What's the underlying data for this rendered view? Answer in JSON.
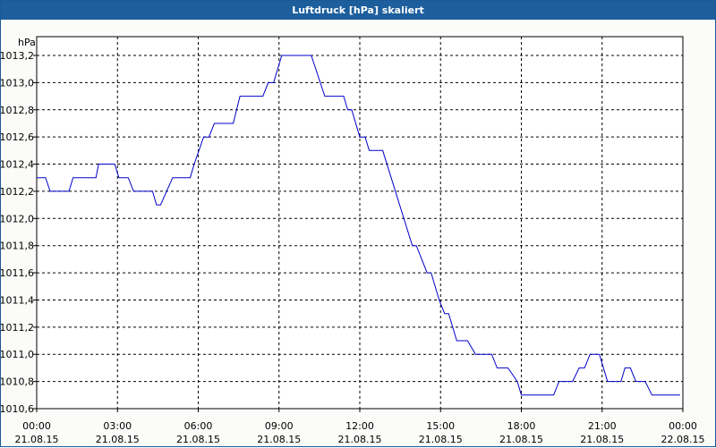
{
  "window": {
    "title": "Luftdruck [hPa] skaliert"
  },
  "chart_data": {
    "type": "line",
    "title": "Luftdruck [hPa] skaliert",
    "ylabel": "hPa",
    "xlabel": "",
    "ylim": [
      1010.6,
      1013.2
    ],
    "xlim": [
      "21.08.15 00:00",
      "22.08.15 00:00"
    ],
    "grid": true,
    "yticks": [
      1010.6,
      1010.8,
      1011.0,
      1011.2,
      1011.4,
      1011.6,
      1011.8,
      1012.0,
      1012.2,
      1012.4,
      1012.6,
      1012.8,
      1013.0,
      1013.2
    ],
    "ytick_labels": [
      "1010,6",
      "1010,8",
      "1011,0",
      "1011,2",
      "1011,4",
      "1011,6",
      "1011,8",
      "1012,0",
      "1012,2",
      "1012,4",
      "1012,6",
      "1012,8",
      "1013,0",
      "1013,2"
    ],
    "xticks": [
      {
        "time": "00:00",
        "date": "21.08.15",
        "h": 0
      },
      {
        "time": "03:00",
        "date": "21.08.15",
        "h": 3
      },
      {
        "time": "06:00",
        "date": "21.08.15",
        "h": 6
      },
      {
        "time": "09:00",
        "date": "21.08.15",
        "h": 9
      },
      {
        "time": "12:00",
        "date": "21.08.15",
        "h": 12
      },
      {
        "time": "15:00",
        "date": "21.08.15",
        "h": 15
      },
      {
        "time": "18:00",
        "date": "21.08.15",
        "h": 18
      },
      {
        "time": "21:00",
        "date": "21.08.15",
        "h": 21
      },
      {
        "time": "00:00",
        "date": "22.08.15",
        "h": 24
      }
    ],
    "series": [
      {
        "color": "#0000cc",
        "points": [
          [
            0.0,
            1012.3
          ],
          [
            0.33,
            1012.3
          ],
          [
            0.5,
            1012.2
          ],
          [
            1.2,
            1012.2
          ],
          [
            1.35,
            1012.3
          ],
          [
            2.2,
            1012.3
          ],
          [
            2.3,
            1012.4
          ],
          [
            2.9,
            1012.4
          ],
          [
            3.05,
            1012.3
          ],
          [
            3.4,
            1012.3
          ],
          [
            3.6,
            1012.2
          ],
          [
            4.3,
            1012.2
          ],
          [
            4.45,
            1012.1
          ],
          [
            4.6,
            1012.1
          ],
          [
            5.05,
            1012.3
          ],
          [
            5.7,
            1012.3
          ],
          [
            5.85,
            1012.4
          ],
          [
            6.2,
            1012.6
          ],
          [
            6.4,
            1012.6
          ],
          [
            6.6,
            1012.7
          ],
          [
            7.3,
            1012.7
          ],
          [
            7.55,
            1012.9
          ],
          [
            8.4,
            1012.9
          ],
          [
            8.6,
            1013.0
          ],
          [
            8.8,
            1013.0
          ],
          [
            9.1,
            1013.2
          ],
          [
            10.2,
            1013.2
          ],
          [
            10.7,
            1012.9
          ],
          [
            11.4,
            1012.9
          ],
          [
            11.55,
            1012.8
          ],
          [
            11.7,
            1012.8
          ],
          [
            12.0,
            1012.6
          ],
          [
            12.2,
            1012.6
          ],
          [
            12.35,
            1012.5
          ],
          [
            12.85,
            1012.5
          ],
          [
            13.95,
            1011.8
          ],
          [
            14.1,
            1011.8
          ],
          [
            14.5,
            1011.6
          ],
          [
            14.65,
            1011.6
          ],
          [
            14.95,
            1011.4
          ],
          [
            15.15,
            1011.3
          ],
          [
            15.3,
            1011.3
          ],
          [
            15.6,
            1011.1
          ],
          [
            16.0,
            1011.1
          ],
          [
            16.3,
            1011.0
          ],
          [
            16.9,
            1011.0
          ],
          [
            17.1,
            1010.9
          ],
          [
            17.5,
            1010.9
          ],
          [
            17.85,
            1010.8
          ],
          [
            18.0,
            1010.7
          ],
          [
            19.2,
            1010.7
          ],
          [
            19.4,
            1010.8
          ],
          [
            19.9,
            1010.8
          ],
          [
            20.15,
            1010.9
          ],
          [
            20.35,
            1010.9
          ],
          [
            20.55,
            1011.0
          ],
          [
            20.9,
            1011.0
          ],
          [
            21.2,
            1010.8
          ],
          [
            21.7,
            1010.8
          ],
          [
            21.85,
            1010.9
          ],
          [
            22.05,
            1010.9
          ],
          [
            22.25,
            1010.8
          ],
          [
            22.6,
            1010.8
          ],
          [
            22.85,
            1010.7
          ],
          [
            23.9,
            1010.7
          ]
        ]
      }
    ]
  }
}
